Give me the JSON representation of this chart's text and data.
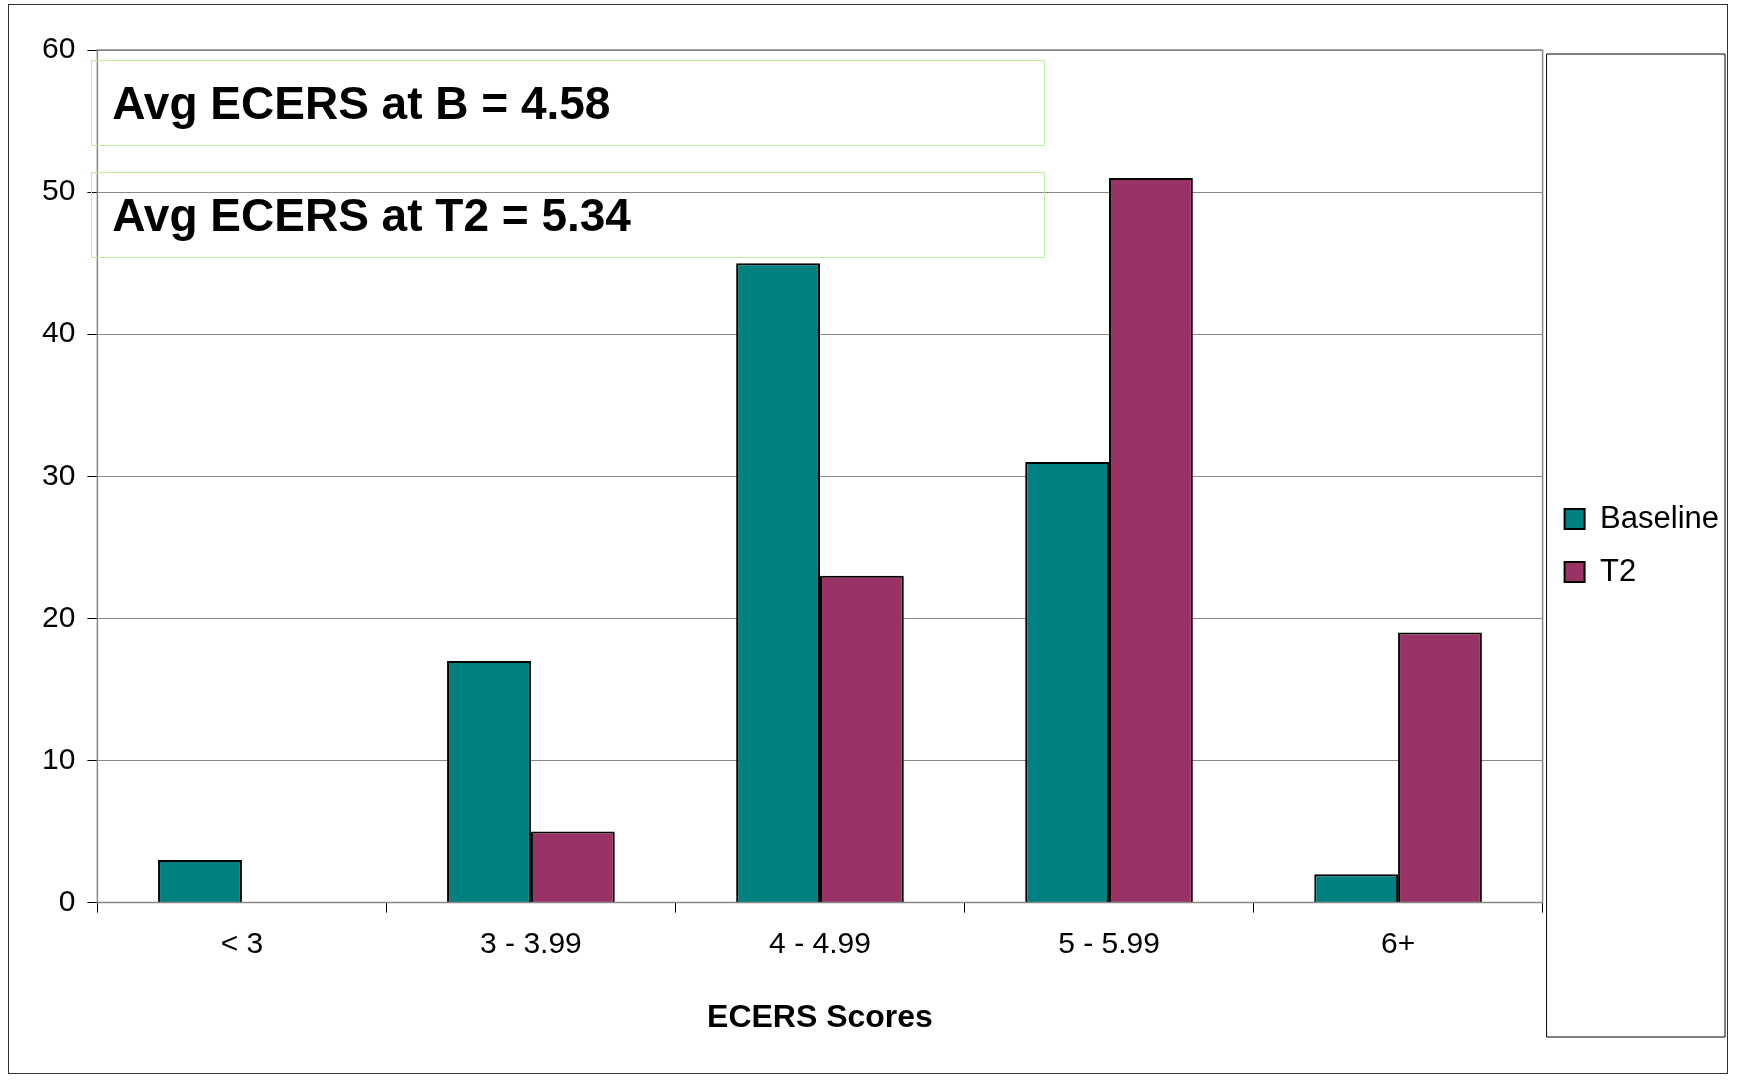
{
  "chart_data": {
    "type": "bar",
    "xlabel": "ECERS Scores",
    "categories": [
      "< 3",
      "3 - 3.99",
      "4 - 4.99",
      "5 - 5.99",
      "6+"
    ],
    "series": [
      {
        "name": "Baseline",
        "color": "#008080",
        "values": [
          3,
          17,
          45,
          31,
          2
        ]
      },
      {
        "name": "T2",
        "color": "#993366",
        "values": [
          0,
          5,
          23,
          51,
          19
        ]
      }
    ],
    "ylim": [
      0,
      60
    ],
    "yticks": [
      0,
      10,
      20,
      30,
      40,
      50,
      60
    ],
    "grid": "y",
    "legend": "right",
    "annotations": [
      "Avg ECERS at B = 4.58",
      "Avg ECERS at T2 = 5.34"
    ]
  }
}
